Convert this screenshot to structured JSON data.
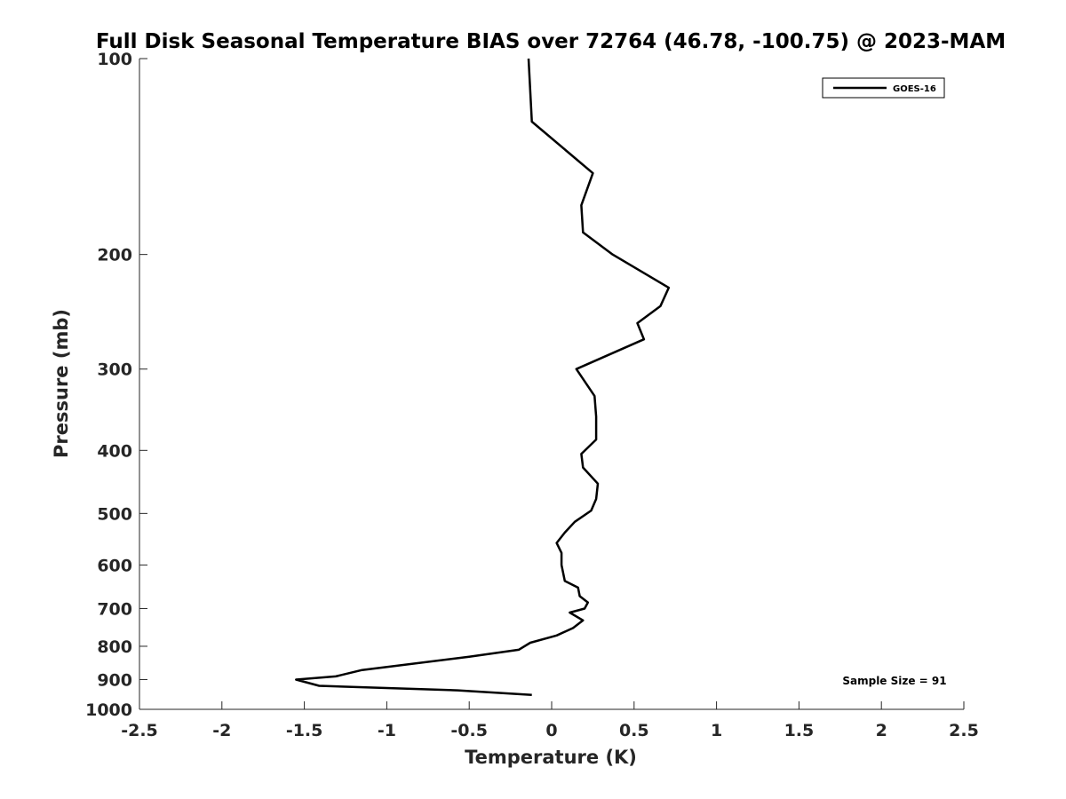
{
  "chart_data": {
    "type": "line",
    "title": "Full Disk Seasonal Temperature BIAS over 72764 (46.78, -100.75) @ 2023-MAM",
    "xlabel": "Temperature (K)",
    "ylabel": "Pressure (mb)",
    "xlim": [
      -2.5,
      2.5
    ],
    "ylim": [
      100,
      1000
    ],
    "y_scale": "log",
    "y_reversed": true,
    "xticks": [
      -2.5,
      -2,
      -1.5,
      -1,
      -0.5,
      0,
      0.5,
      1,
      1.5,
      2,
      2.5
    ],
    "xtick_labels": [
      "-2.5",
      "-2",
      "-1.5",
      "-1",
      "-0.5",
      "0",
      "0.5",
      "1",
      "1.5",
      "2",
      "2.5"
    ],
    "yticks": [
      100,
      200,
      300,
      400,
      500,
      600,
      700,
      800,
      900,
      1000
    ],
    "ytick_labels": [
      "100",
      "200",
      "300",
      "400",
      "500",
      "600",
      "700",
      "800",
      "900",
      "1000"
    ],
    "legend_position": "top-right",
    "grid": false,
    "annotation": "Sample Size = 91",
    "series": [
      {
        "name": "GOES-16",
        "color": "#000000",
        "points": [
          {
            "x": -0.14,
            "p": 100
          },
          {
            "x": -0.12,
            "p": 125
          },
          {
            "x": 0.25,
            "p": 150
          },
          {
            "x": 0.18,
            "p": 168
          },
          {
            "x": 0.19,
            "p": 185
          },
          {
            "x": 0.37,
            "p": 200
          },
          {
            "x": 0.71,
            "p": 225
          },
          {
            "x": 0.66,
            "p": 240
          },
          {
            "x": 0.52,
            "p": 255
          },
          {
            "x": 0.56,
            "p": 270
          },
          {
            "x": 0.15,
            "p": 300
          },
          {
            "x": 0.26,
            "p": 330
          },
          {
            "x": 0.27,
            "p": 355
          },
          {
            "x": 0.27,
            "p": 385
          },
          {
            "x": 0.18,
            "p": 405
          },
          {
            "x": 0.19,
            "p": 425
          },
          {
            "x": 0.28,
            "p": 450
          },
          {
            "x": 0.27,
            "p": 475
          },
          {
            "x": 0.24,
            "p": 495
          },
          {
            "x": 0.14,
            "p": 515
          },
          {
            "x": 0.08,
            "p": 535
          },
          {
            "x": 0.03,
            "p": 555
          },
          {
            "x": 0.06,
            "p": 575
          },
          {
            "x": 0.06,
            "p": 600
          },
          {
            "x": 0.08,
            "p": 635
          },
          {
            "x": 0.16,
            "p": 650
          },
          {
            "x": 0.17,
            "p": 670
          },
          {
            "x": 0.22,
            "p": 685
          },
          {
            "x": 0.2,
            "p": 700
          },
          {
            "x": 0.11,
            "p": 710
          },
          {
            "x": 0.19,
            "p": 730
          },
          {
            "x": 0.13,
            "p": 750
          },
          {
            "x": 0.03,
            "p": 770
          },
          {
            "x": -0.13,
            "p": 790
          },
          {
            "x": -0.2,
            "p": 810
          },
          {
            "x": -0.5,
            "p": 830
          },
          {
            "x": -1.15,
            "p": 870
          },
          {
            "x": -1.31,
            "p": 890
          },
          {
            "x": -1.55,
            "p": 900
          },
          {
            "x": -1.41,
            "p": 920
          },
          {
            "x": -0.57,
            "p": 935
          },
          {
            "x": -0.12,
            "p": 950
          }
        ]
      }
    ]
  }
}
